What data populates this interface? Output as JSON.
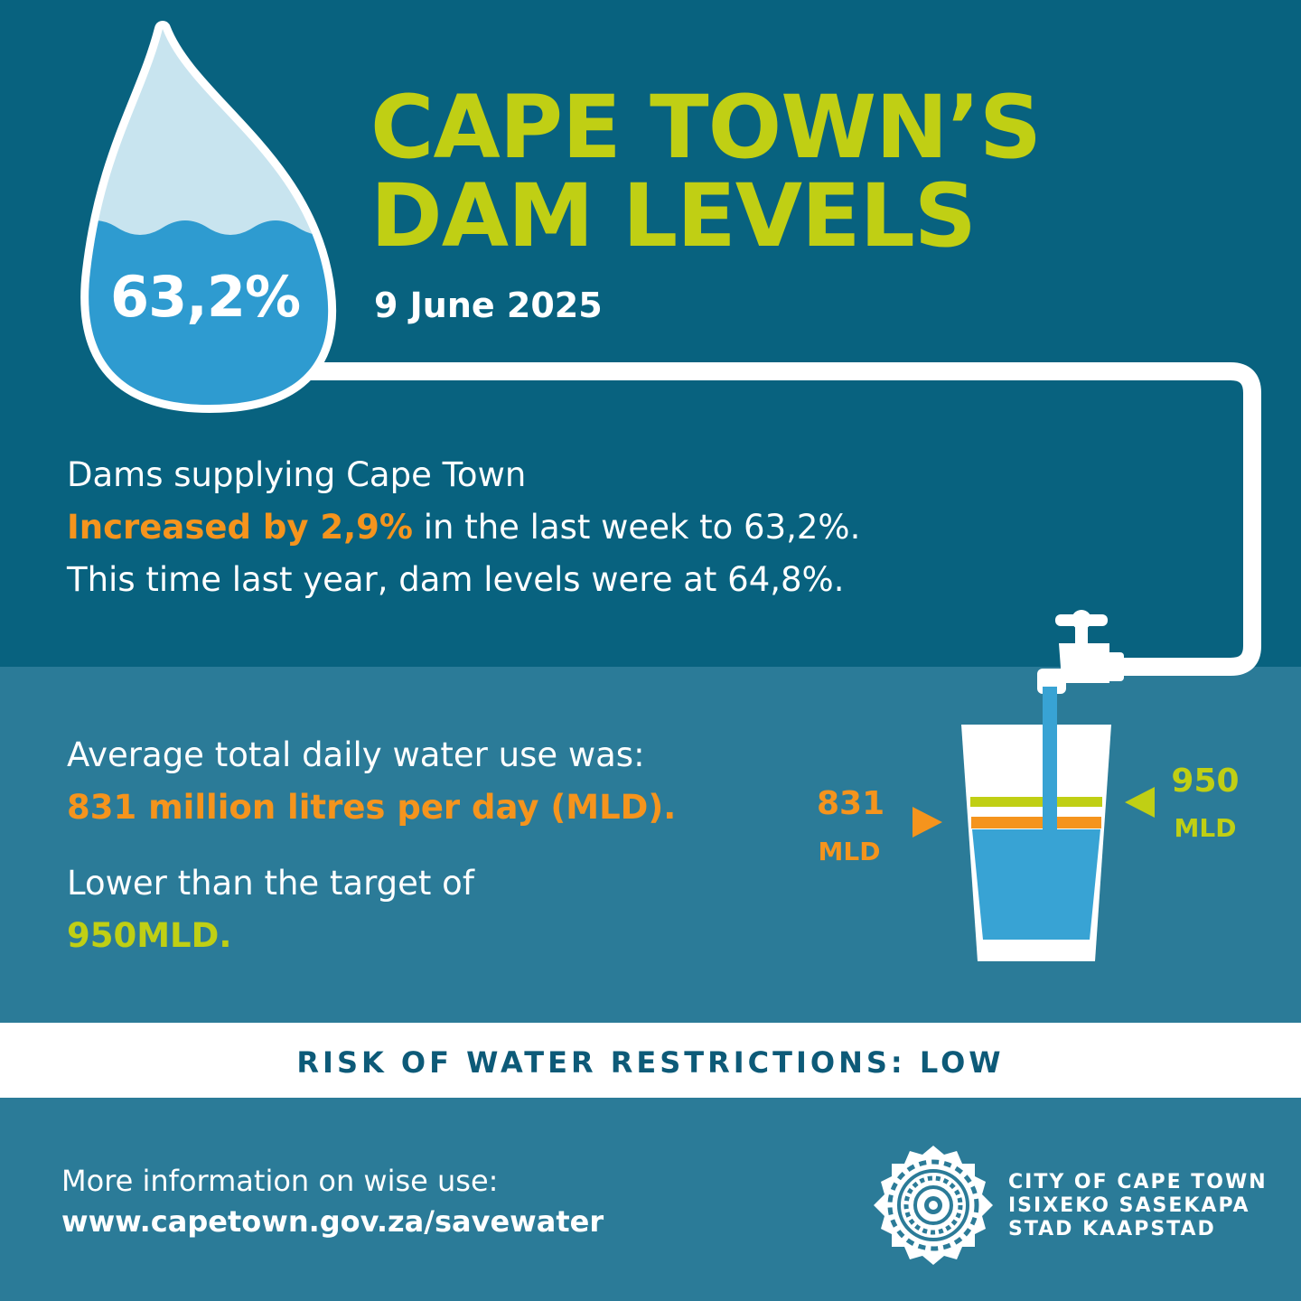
{
  "title": {
    "line1": "CAPE TOWN’S",
    "line2": "DAM LEVELS"
  },
  "date": "9 June 2025",
  "dam_level": {
    "label": "63,2%",
    "value": 63.2
  },
  "dams": {
    "line1": "Dams supplying Cape Town",
    "highlight": "Increased by 2,9%",
    "line2_rest": " in the last week to 63,2%.",
    "line3": "This time last year, dam levels were at 64,8%."
  },
  "usage": {
    "line1": "Average total daily water use was:",
    "value_line": "831 million litres per day (MLD).",
    "line3": "Lower than the target of",
    "target_line": "950MLD."
  },
  "glass": {
    "actual_value": "831",
    "actual_unit": "MLD",
    "target_value": "950",
    "target_unit": "MLD"
  },
  "risk": "RISK OF WATER RESTRICTIONS: LOW",
  "footer": {
    "line1": "More information on wise use:",
    "url": "www.capetown.gov.za/savewater"
  },
  "logo": {
    "line1": "CITY OF CAPE TOWN",
    "line2": "ISIXEKO SASEKAPA",
    "line3": "STAD KAAPSTAD"
  },
  "colors": {
    "dark_blue": "#08627f",
    "mid_blue": "#2b7b98",
    "lime": "#c0cf14",
    "orange": "#f5941d",
    "water": "#38a3d4",
    "drop_light": "#c8e4ef"
  }
}
